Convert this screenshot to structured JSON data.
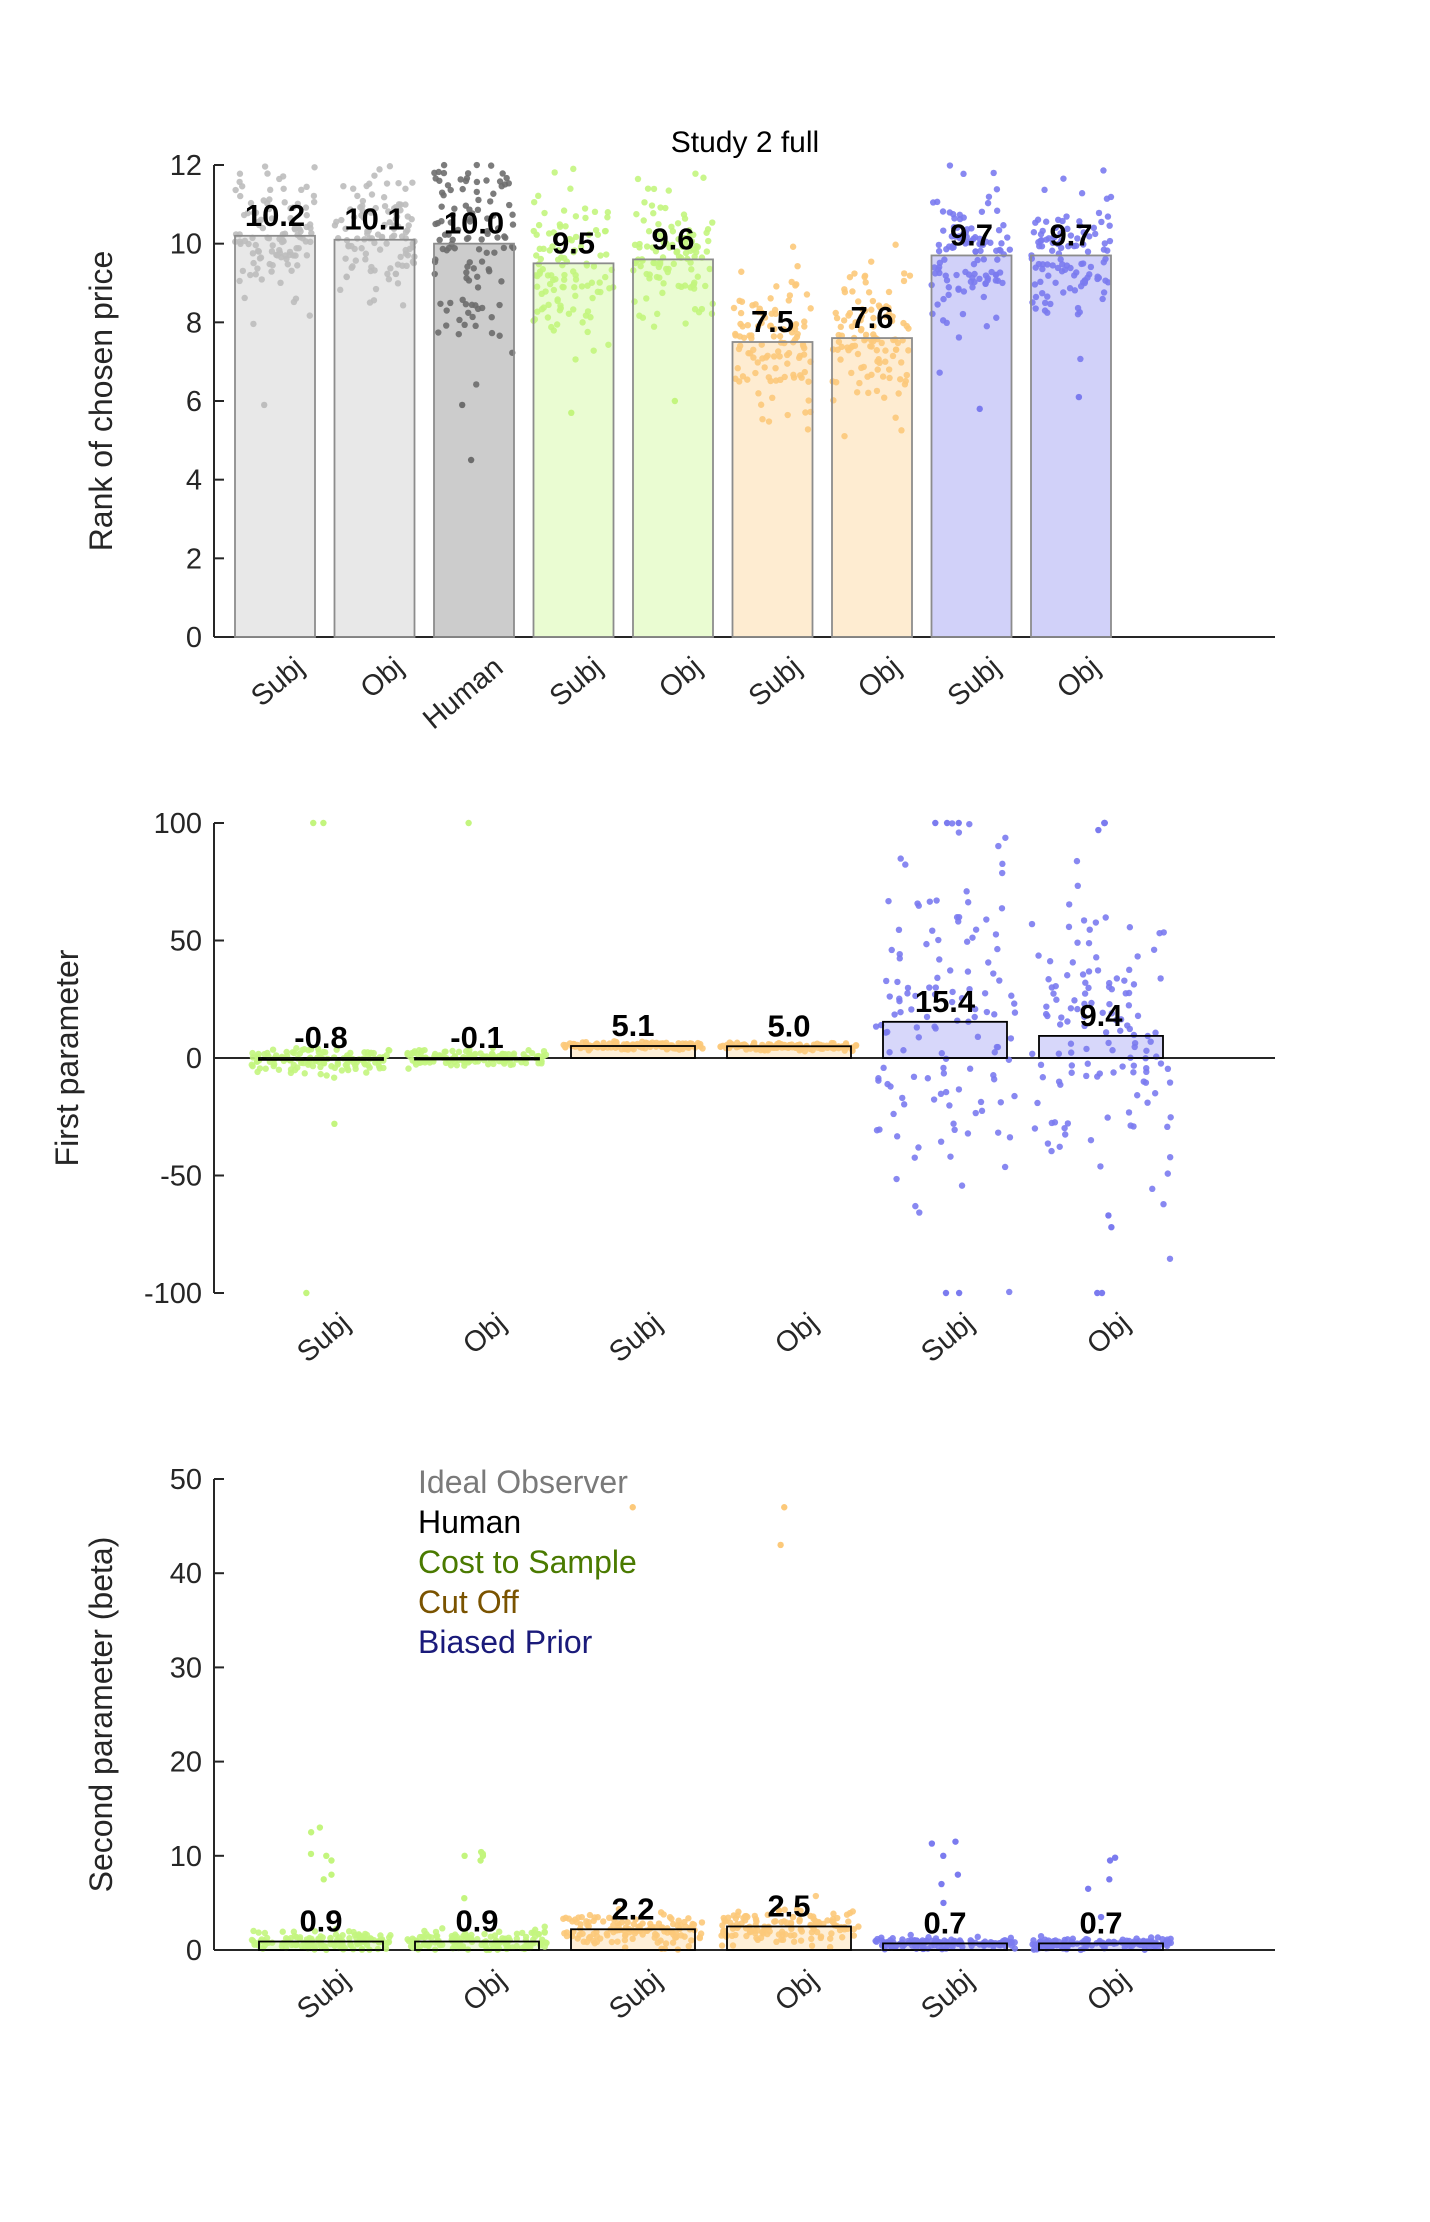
{
  "colors": {
    "ideal": "#bdbdbd",
    "human": "#6e6e6e",
    "cost": "#c3f57e",
    "cutoff": "#fcc97a",
    "prior": "#7b7bef",
    "legend_ideal": "#7a7a7a",
    "legend_human": "#000000",
    "legend_cost": "#4a7a00",
    "legend_cutoff": "#7a5300",
    "legend_prior": "#1a1a7a"
  },
  "chart_data": [
    {
      "type": "bar",
      "title": "Study 2 full",
      "ylabel": "Rank of chosen price",
      "xlabel": "",
      "ylim": [
        0,
        12
      ],
      "yticks": [
        0,
        2,
        4,
        6,
        8,
        10,
        12
      ],
      "categories": [
        "Subj",
        "Obj",
        "Human",
        "Subj",
        "Obj",
        "Subj",
        "Obj",
        "Subj",
        "Obj"
      ],
      "groups": [
        "ideal",
        "ideal",
        "human",
        "cost",
        "cost",
        "cutoff",
        "cutoff",
        "prior",
        "prior"
      ],
      "values": [
        10.2,
        10.1,
        10.0,
        9.5,
        9.6,
        7.5,
        7.6,
        9.7,
        9.7
      ],
      "value_labels": [
        "10.2",
        "10.1",
        "10.0",
        "9.5",
        "9.6",
        "7.5",
        "7.6",
        "9.7",
        "9.7"
      ]
    },
    {
      "type": "bar",
      "title": "",
      "ylabel": "First parameter",
      "xlabel": "",
      "ylim": [
        -100,
        100
      ],
      "yticks": [
        -100,
        -50,
        0,
        50,
        100
      ],
      "categories": [
        "Subj",
        "Obj",
        "Subj",
        "Obj",
        "Subj",
        "Obj"
      ],
      "groups": [
        "cost",
        "cost",
        "cutoff",
        "cutoff",
        "prior",
        "prior"
      ],
      "values": [
        -0.8,
        -0.1,
        5.1,
        5.0,
        15.4,
        9.4
      ],
      "value_labels": [
        "-0.8",
        "-0.1",
        "5.1",
        "5.0",
        "15.4",
        "9.4"
      ]
    },
    {
      "type": "bar",
      "title": "",
      "ylabel": "Second parameter (beta)",
      "xlabel": "",
      "ylim": [
        0,
        50
      ],
      "yticks": [
        0,
        10,
        20,
        30,
        40,
        50
      ],
      "categories": [
        "Subj",
        "Obj",
        "Subj",
        "Obj",
        "Subj",
        "Obj"
      ],
      "groups": [
        "cost",
        "cost",
        "cutoff",
        "cutoff",
        "prior",
        "prior"
      ],
      "values": [
        0.9,
        0.9,
        2.2,
        2.5,
        0.7,
        0.7
      ],
      "value_labels": [
        "0.9",
        "0.9",
        "2.2",
        "2.5",
        "0.7",
        "0.7"
      ],
      "legend": {
        "placement": "top-left",
        "entries": [
          {
            "label": "Ideal Observer",
            "color_key": "legend_ideal"
          },
          {
            "label": "Human",
            "color_key": "legend_human"
          },
          {
            "label": "Cost to Sample",
            "color_key": "legend_cost"
          },
          {
            "label": "Cut Off",
            "color_key": "legend_cutoff"
          },
          {
            "label": "Biased Prior",
            "color_key": "legend_prior"
          }
        ]
      }
    }
  ]
}
